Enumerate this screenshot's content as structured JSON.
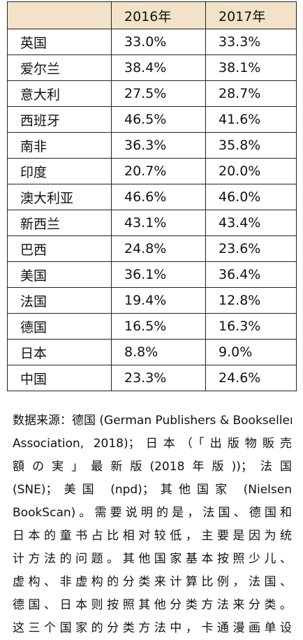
{
  "table": {
    "header": [
      "2016年",
      "2017年"
    ],
    "rows": [
      [
        "英国",
        "33.0%",
        "33.3%"
      ],
      [
        "爱尔兰",
        "38.4%",
        "38.1%"
      ],
      [
        "意大利",
        "27.5%",
        "28.7%"
      ],
      [
        "西班牙",
        "46.5%",
        "41.6%"
      ],
      [
        "南非",
        "36.3%",
        "35.8%"
      ],
      [
        "印度",
        "20.7%",
        "20.0%"
      ],
      [
        "澳大利亚",
        "46.6%",
        "46.0%"
      ],
      [
        "新西兰",
        "43.1%",
        "43.4%"
      ],
      [
        "巴西",
        "24.8%",
        "23.6%"
      ],
      [
        "美国",
        "36.1%",
        "36.4%"
      ],
      [
        "法国",
        "19.4%",
        "12.8%"
      ],
      [
        "德国",
        "16.5%",
        "16.3%"
      ],
      [
        "日本",
        "8.8%",
        "9.0%"
      ],
      [
        "中国",
        "23.3%",
        "24.6%"
      ]
    ]
  },
  "note": {
    "lines": [
      "数据来源：德国 (German Publishers & Booksellers",
      "Association, 2018)；日本（「出版物販売",
      "額の実」最新版(2018年版))；法国",
      "(SNE)；美国 (npd)；其他国家 (Nielsen",
      "BookScan)。需要说明的是，法国、德国和",
      "日本的童书占比相对较低，主要是因为统",
      "计方法的问题。其他国家基本按照少儿、",
      "虚构、非虚构的分类来计算比例，法国、",
      "德国、日本则按照其他分类方法来分类。",
      "这三个国家的分类方法中，卡通漫画单设"
    ]
  }
}
